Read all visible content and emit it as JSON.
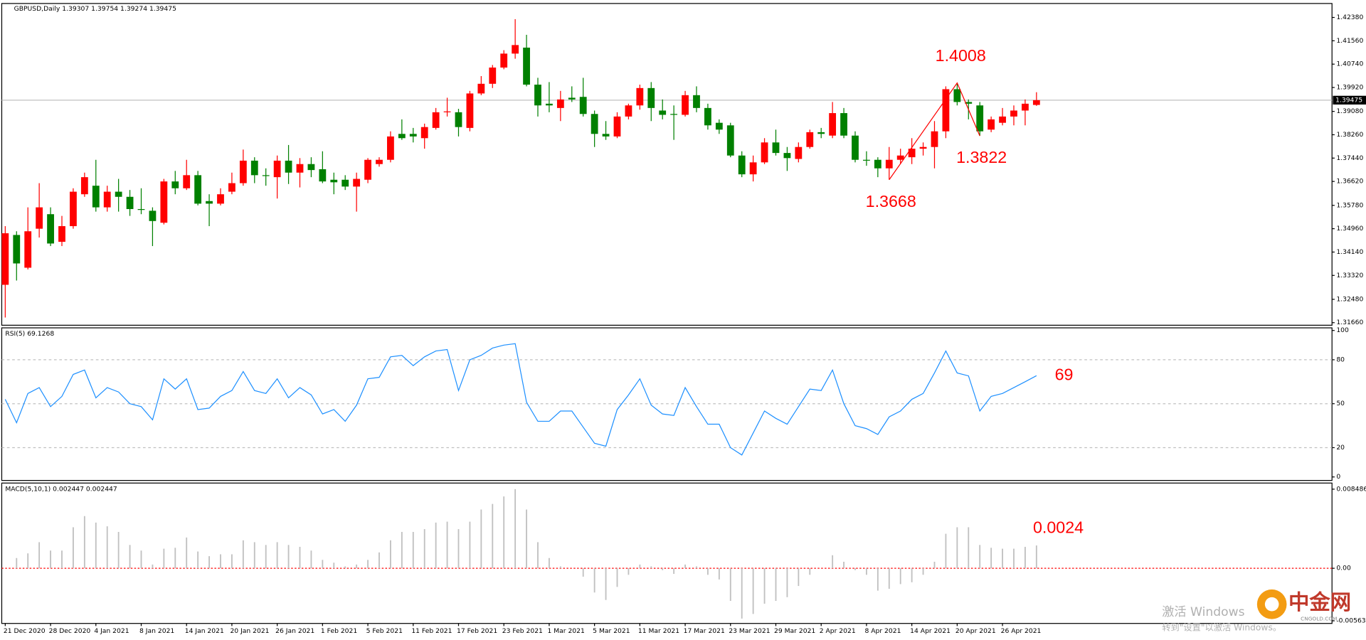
{
  "chart_data": [
    {
      "type": "candlestick",
      "title": "GBPUSD,Daily  1.39307 1.39754 1.39274 1.39475",
      "categories": [
        "21 Dec 2020",
        null,
        null,
        null,
        "28 Dec 2020",
        null,
        null,
        null,
        "4 Jan 2021",
        null,
        null,
        null,
        "8 Jan 2021",
        null,
        null,
        null,
        "14 Jan 2021",
        null,
        null,
        null,
        "20 Jan 2021",
        null,
        null,
        null,
        "26 Jan 2021",
        null,
        null,
        null,
        "1 Feb 2021",
        null,
        null,
        null,
        "5 Feb 2021",
        null,
        null,
        null,
        "11 Feb 2021",
        null,
        null,
        null,
        "17 Feb 2021",
        null,
        null,
        null,
        "23 Feb 2021",
        null,
        null,
        null,
        "1 Mar 2021",
        null,
        null,
        null,
        "5 Mar 2021",
        null,
        null,
        null,
        "11 Mar 2021",
        null,
        null,
        null,
        "17 Mar 2021",
        null,
        null,
        null,
        "23 Mar 2021",
        null,
        null,
        null,
        "29 Mar 2021",
        null,
        null,
        null,
        "2 Apr 2021",
        null,
        null,
        null,
        "8 Apr 2021",
        null,
        null,
        null,
        "14 Apr 2021",
        null,
        null,
        null,
        "20 Apr 2021",
        null,
        null,
        null,
        "26 Apr 2021",
        null,
        null,
        null
      ],
      "open": [
        1.3299,
        1.3474,
        1.3359,
        1.3496,
        1.3547,
        1.345,
        1.3505,
        1.3617,
        1.3647,
        1.3571,
        1.3626,
        1.3608,
        1.3565,
        1.3559,
        1.3517,
        1.3662,
        1.3638,
        1.3684,
        1.3593,
        1.3584,
        1.3626,
        1.3656,
        1.3735,
        1.3684,
        1.3677,
        1.3735,
        1.3693,
        1.3723,
        1.3705,
        1.3668,
        1.3668,
        1.3644,
        1.3668,
        1.3723,
        1.3738,
        1.3829,
        1.3829,
        1.3814,
        1.385,
        1.3905,
        1.3905,
        1.385,
        1.3971,
        1.4005,
        1.4062,
        1.4111,
        1.4132,
        1.4002,
        1.3935,
        1.392,
        1.3956,
        1.3959,
        1.3899,
        1.3829,
        1.382,
        1.389,
        1.3929,
        1.399,
        1.3911,
        1.3899,
        1.3896,
        1.3965,
        1.392,
        1.3868,
        1.3859,
        1.3753,
        1.3687,
        1.3729,
        1.3799,
        1.3762,
        1.3741,
        1.3783,
        1.3835,
        1.3823,
        1.3902,
        1.3823,
        1.3738,
        1.3738,
        1.3708,
        1.3738,
        1.3747,
        1.3777,
        1.3783,
        1.3838,
        1.3986,
        1.3941,
        1.3929,
        1.3844,
        1.3868,
        1.389,
        1.3911,
        1.39307
      ],
      "high": [
        1.3505,
        1.3487,
        1.3571,
        1.3656,
        1.3571,
        1.3541,
        1.3638,
        1.3693,
        1.3738,
        1.3647,
        1.3671,
        1.3632,
        1.3638,
        1.3571,
        1.3671,
        1.3699,
        1.3738,
        1.3699,
        1.3617,
        1.3638,
        1.3693,
        1.3774,
        1.3747,
        1.3708,
        1.3753,
        1.379,
        1.3744,
        1.3747,
        1.3768,
        1.3693,
        1.3684,
        1.3693,
        1.3744,
        1.3747,
        1.3838,
        1.388,
        1.385,
        1.3865,
        1.392,
        1.3956,
        1.3917,
        1.398,
        1.4032,
        1.4071,
        1.4123,
        1.4232,
        1.4177,
        1.4026,
        1.4011,
        1.398,
        1.3996,
        1.4026,
        1.3911,
        1.3874,
        1.3905,
        1.3935,
        1.4002,
        1.4011,
        1.395,
        1.3929,
        1.398,
        1.3996,
        1.3935,
        1.388,
        1.3868,
        1.3768,
        1.3753,
        1.3814,
        1.3844,
        1.3783,
        1.3799,
        1.3844,
        1.385,
        1.3941,
        1.392,
        1.3838,
        1.3768,
        1.3747,
        1.3783,
        1.3777,
        1.3814,
        1.3799,
        1.3874,
        1.3996,
        1.4008,
        1.395,
        1.3941,
        1.389,
        1.392,
        1.3929,
        1.395,
        1.39754
      ],
      "low": [
        1.3184,
        1.3314,
        1.3353,
        1.3465,
        1.3435,
        1.3435,
        1.3496,
        1.3608,
        1.3556,
        1.3556,
        1.3556,
        1.3541,
        1.3547,
        1.3435,
        1.3511,
        1.3617,
        1.3632,
        1.3578,
        1.3505,
        1.3578,
        1.3617,
        1.3647,
        1.3656,
        1.3647,
        1.3602,
        1.3653,
        1.3641,
        1.3677,
        1.3656,
        1.3617,
        1.3632,
        1.3556,
        1.3656,
        1.3714,
        1.3729,
        1.3808,
        1.3799,
        1.3777,
        1.3844,
        1.389,
        1.382,
        1.3838,
        1.3965,
        1.399,
        1.4056,
        1.4093,
        1.3996,
        1.389,
        1.3905,
        1.3874,
        1.3941,
        1.389,
        1.3783,
        1.3808,
        1.3814,
        1.388,
        1.3914,
        1.3874,
        1.388,
        1.3808,
        1.389,
        1.3905,
        1.3844,
        1.3829,
        1.3747,
        1.3677,
        1.3662,
        1.3723,
        1.3753,
        1.3699,
        1.3729,
        1.3777,
        1.3814,
        1.3814,
        1.3814,
        1.3729,
        1.3717,
        1.3677,
        1.3668,
        1.3723,
        1.3723,
        1.3753,
        1.3708,
        1.3814,
        1.3929,
        1.388,
        1.3822,
        1.3835,
        1.3859,
        1.3859,
        1.3859,
        1.39274
      ],
      "close": [
        1.348,
        1.3374,
        1.3487,
        1.3571,
        1.3444,
        1.3505,
        1.3626,
        1.3677,
        1.3571,
        1.3626,
        1.3608,
        1.3565,
        1.3562,
        1.3523,
        1.3662,
        1.3638,
        1.3684,
        1.3584,
        1.3584,
        1.3617,
        1.3656,
        1.3735,
        1.3684,
        1.3681,
        1.3735,
        1.3693,
        1.3723,
        1.3702,
        1.3662,
        1.3659,
        1.3644,
        1.3671,
        1.3738,
        1.3738,
        1.382,
        1.3814,
        1.382,
        1.3853,
        1.3905,
        1.3908,
        1.3853,
        1.3971,
        1.4005,
        1.4062,
        1.4111,
        1.4141,
        1.4002,
        1.3929,
        1.3929,
        1.395,
        1.395,
        1.3899,
        1.3829,
        1.382,
        1.389,
        1.3929,
        1.399,
        1.392,
        1.3896,
        1.3896,
        1.3965,
        1.392,
        1.3859,
        1.3844,
        1.3753,
        1.3687,
        1.3729,
        1.3799,
        1.3762,
        1.3744,
        1.3783,
        1.3835,
        1.3829,
        1.3902,
        1.3823,
        1.3738,
        1.3735,
        1.3708,
        1.3738,
        1.3753,
        1.3777,
        1.3783,
        1.3838,
        1.3986,
        1.3941,
        1.3935,
        1.3838,
        1.388,
        1.389,
        1.3911,
        1.3935,
        1.39475
      ],
      "up_color": "#ff0000",
      "down_color": "#008000",
      "ylim": [
        1.3157,
        1.4287
      ],
      "yticks": [
        {
          "value": 1.4238,
          "label": "1.42380"
        },
        {
          "value": 1.4156,
          "label": "1.41560"
        },
        {
          "value": 1.4074,
          "label": "1.40740"
        },
        {
          "value": 1.3992,
          "label": "1.39920"
        },
        {
          "value": 1.3908,
          "label": "1.39080"
        },
        {
          "value": 1.3826,
          "label": "1.38260"
        },
        {
          "value": 1.3744,
          "label": "1.37440"
        },
        {
          "value": 1.3662,
          "label": "1.36620"
        },
        {
          "value": 1.3578,
          "label": "1.35780"
        },
        {
          "value": 1.3496,
          "label": "1.34960"
        },
        {
          "value": 1.3414,
          "label": "1.34140"
        },
        {
          "value": 1.3332,
          "label": "1.33320"
        },
        {
          "value": 1.3248,
          "label": "1.32480"
        },
        {
          "value": 1.3166,
          "label": "1.31660"
        }
      ],
      "current_price": 1.39475,
      "annotations": [
        1.4008,
        1.3822,
        1.3668
      ]
    },
    {
      "type": "line",
      "title": "RSI(5) 69.1268",
      "color": "#1e90ff",
      "values": [
        53,
        37,
        57,
        61,
        48,
        55,
        70,
        73,
        54,
        61,
        58,
        50,
        48,
        39,
        67,
        60,
        67,
        46,
        47,
        55,
        59,
        72,
        59,
        57,
        67,
        54,
        61,
        56,
        43,
        46,
        38,
        49,
        67,
        68,
        82,
        83,
        76,
        82,
        86,
        87,
        59,
        80,
        83,
        88,
        90,
        91,
        51,
        38,
        38,
        45,
        45,
        34,
        23,
        21,
        46,
        56,
        67,
        49,
        43,
        42,
        61,
        48,
        36,
        36,
        20,
        15,
        30,
        45,
        40,
        36,
        48,
        60,
        59,
        73,
        50,
        35,
        33,
        29,
        41,
        45,
        53,
        57,
        71,
        86,
        71,
        69,
        45,
        55,
        57,
        61,
        65,
        69.1268
      ],
      "ylim": [
        0,
        100
      ],
      "yticks": [
        100,
        80,
        50,
        20,
        0
      ],
      "levels": [
        80,
        50,
        20
      ],
      "annotations": [
        69
      ]
    },
    {
      "type": "bar",
      "title": "MACD(5,10,1) 0.002447 0.002447",
      "color": "#c0c0c0",
      "values": [
        0,
        0.0011,
        0.0016,
        0.0028,
        0.0019,
        0.0019,
        0.0044,
        0.0056,
        0.0049,
        0.0045,
        0.0039,
        0.0025,
        0.0019,
        0.0004,
        0.0021,
        0.0022,
        0.0033,
        0.0018,
        0.0013,
        0.0015,
        0.0015,
        0.003,
        0.0028,
        0.0025,
        0.0028,
        0.0025,
        0.0023,
        0.0019,
        0.0009,
        0.0006,
        0.0002,
        0.0004,
        0.0009,
        0.0017,
        0.003,
        0.0039,
        0.0039,
        0.0042,
        0.0049,
        0.005,
        0.0042,
        0.005,
        0.0063,
        0.0069,
        0.0077,
        0.008486,
        0.0063,
        0.0028,
        0.0011,
        0.0002,
        0,
        -0.0009,
        -0.0026,
        -0.0034,
        -0.002,
        -0.0007,
        0.0004,
        0.0002,
        -0.0002,
        -0.0006,
        0.0004,
        0.0002,
        -0.0007,
        -0.0012,
        -0.0035,
        -0.0054,
        -0.0049,
        -0.0038,
        -0.0035,
        -0.0031,
        -0.0019,
        -0.0007,
        0,
        0.0014,
        0.0007,
        -0.0002,
        -0.0007,
        -0.0024,
        -0.0022,
        -0.0017,
        -0.0015,
        -0.0007,
        0.0007,
        0.0037,
        0.0044,
        0.0044,
        0.0025,
        0.0022,
        0.0021,
        0.0021,
        0.0023,
        0.002447
      ],
      "ylim": [
        -0.005636,
        0.008486
      ],
      "yticks": [
        0.008486,
        {
          "value": 0,
          "label": "0.00"
        },
        -0.005636
      ],
      "zero_color": "#ff0000",
      "annotations": [
        0.0024
      ]
    }
  ],
  "overlay": {
    "watermark": [
      "激活 Windows",
      "转到\"设置\"以激活 Windows。"
    ],
    "logo": {
      "name": "中金网",
      "site": "CNGOLD.COM"
    }
  }
}
